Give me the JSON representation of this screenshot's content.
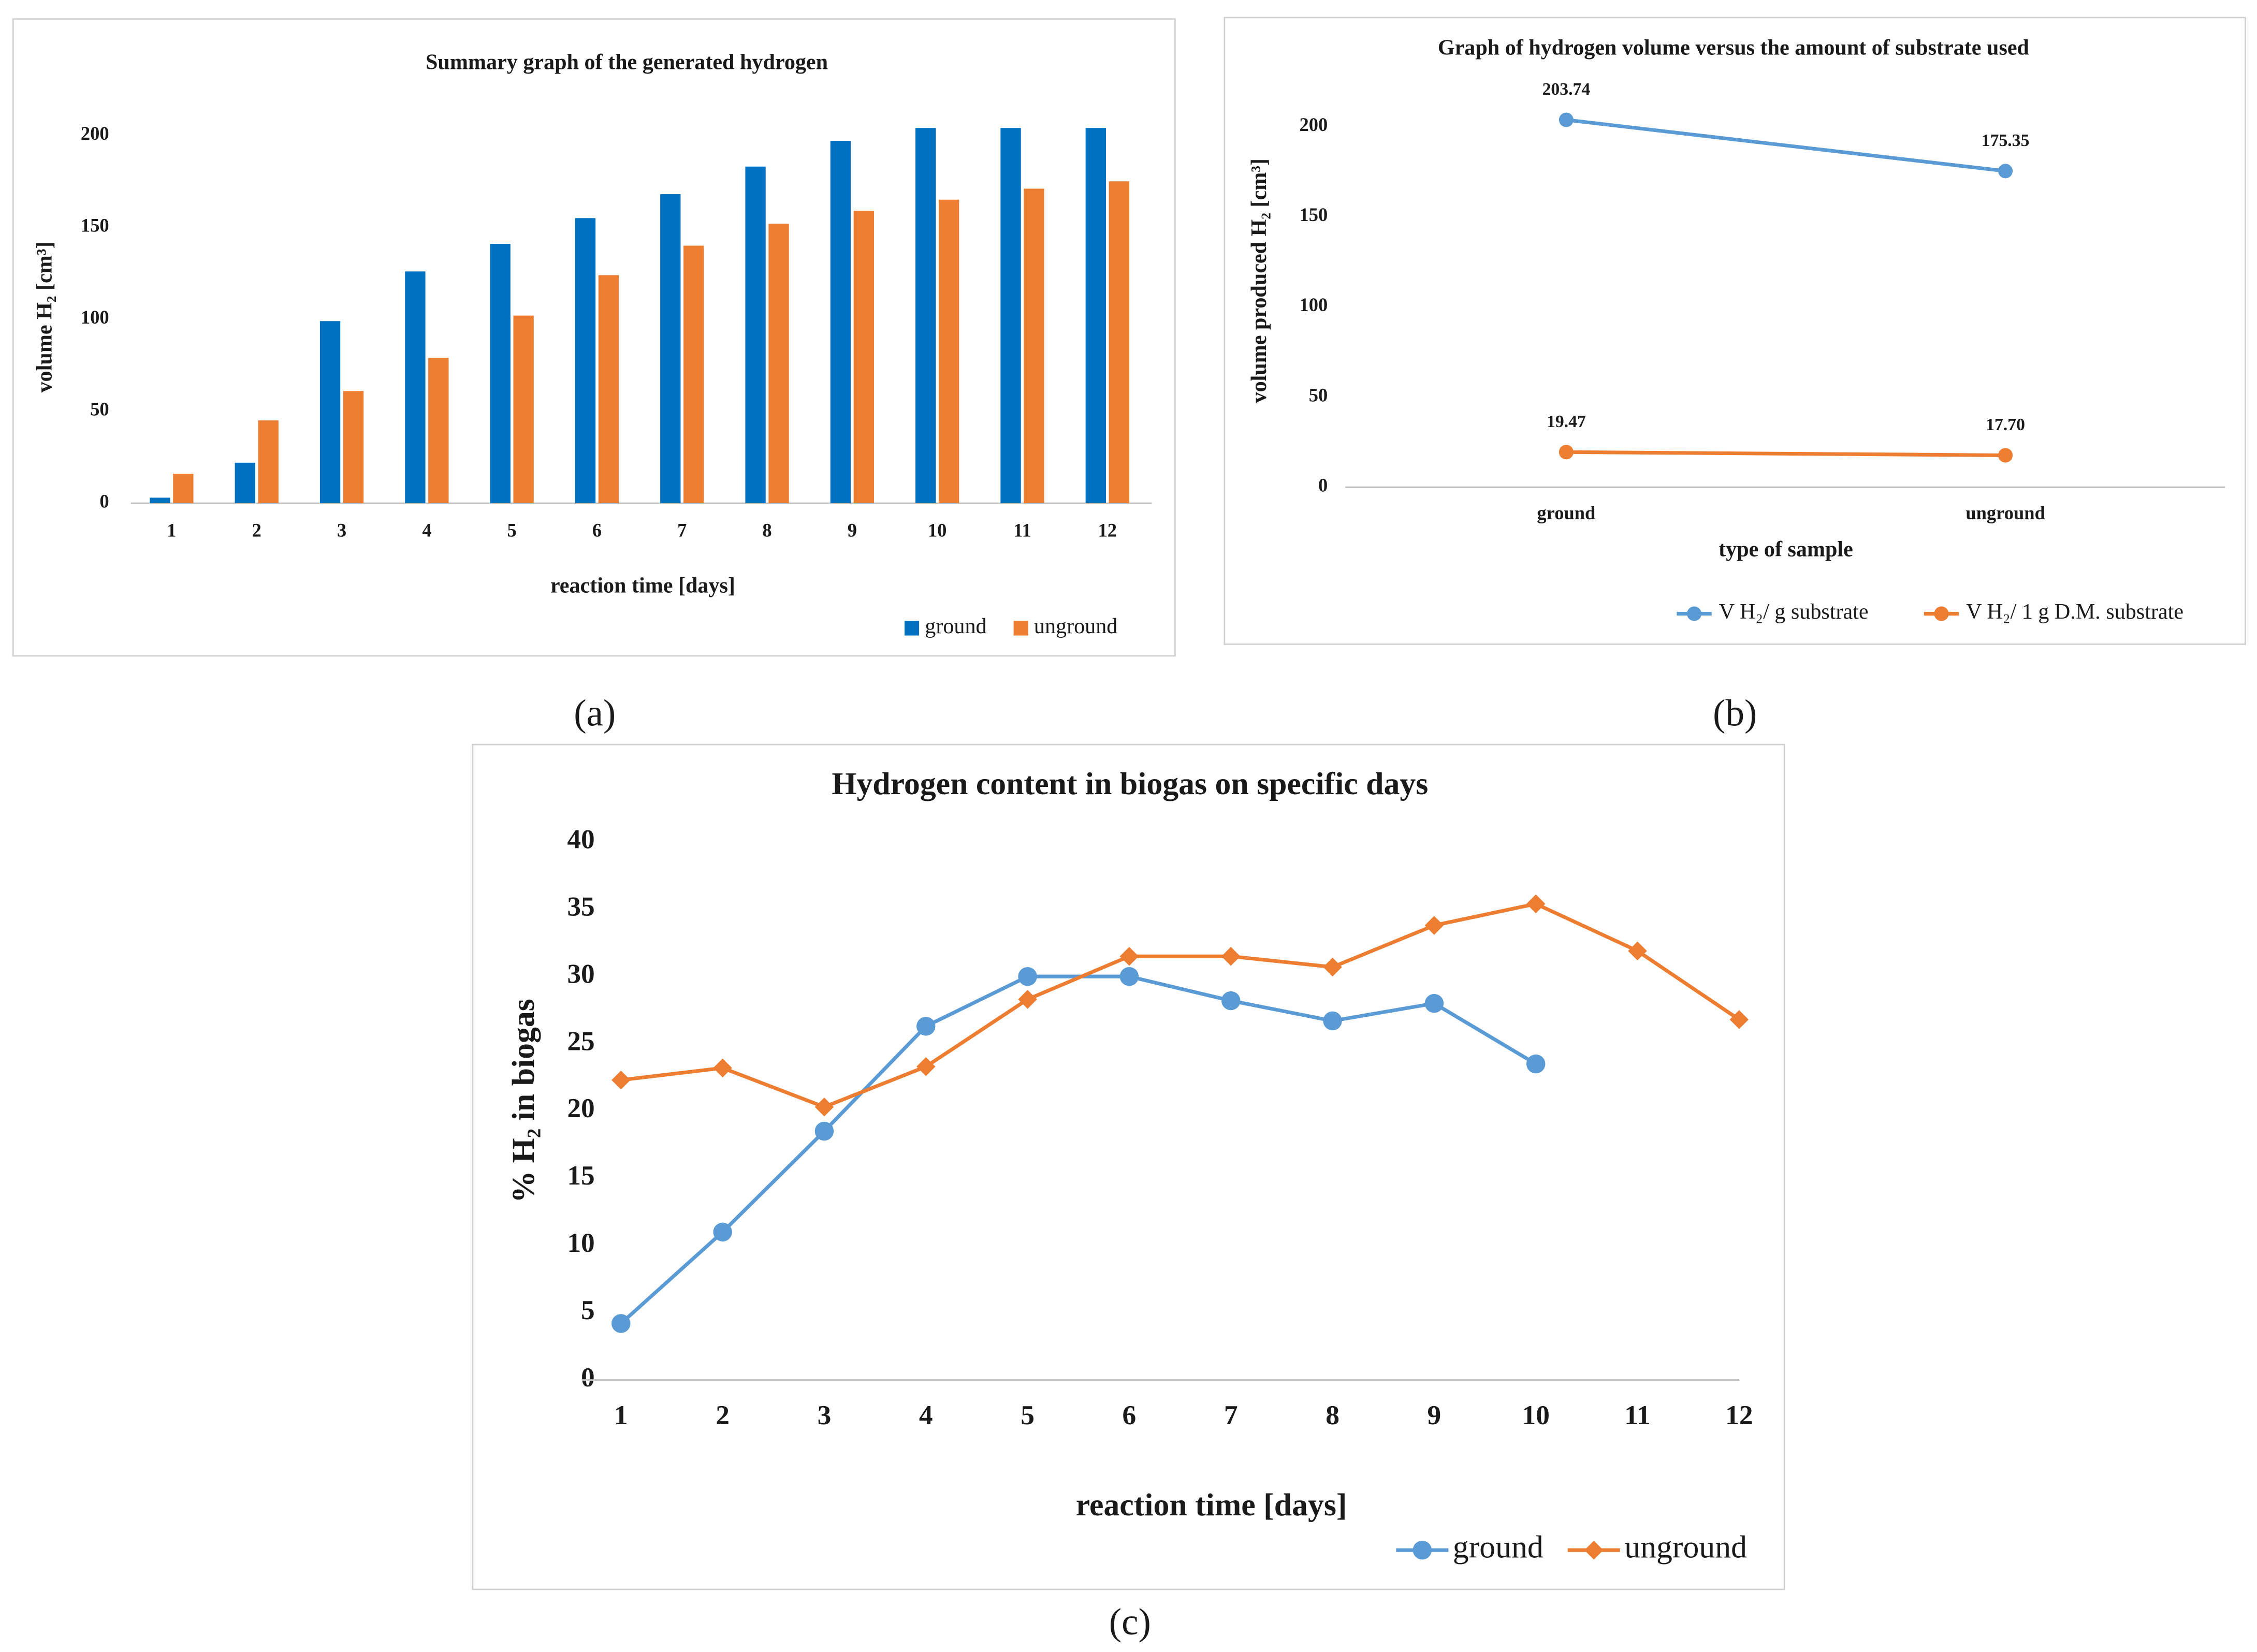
{
  "panel_labels": [
    "(a)",
    "(b)",
    "(c)"
  ],
  "chart_data": [
    {
      "type": "bar",
      "title": "Summary graph of the generated hydrogen",
      "x_label": "reaction time [days]",
      "y_label": "volume H₂ [cm³]",
      "categories": [
        "1",
        "2",
        "3",
        "4",
        "5",
        "6",
        "7",
        "8",
        "9",
        "10",
        "11",
        "12"
      ],
      "series": [
        {
          "name": "ground",
          "color": "#0070c0",
          "values": [
            3,
            22,
            99,
            126,
            141,
            155,
            168,
            183,
            197,
            204,
            204,
            204
          ]
        },
        {
          "name": "unground",
          "color": "#ed7d31",
          "values": [
            16,
            45,
            61,
            79,
            102,
            124,
            140,
            152,
            159,
            165,
            171,
            175
          ]
        }
      ],
      "ylim": [
        0,
        200
      ],
      "yticks": [
        0,
        50,
        100,
        150,
        200
      ],
      "grid": false,
      "legend": "bottom right"
    },
    {
      "type": "line",
      "title": "Graph of hydrogen volume versus the amount of substrate used",
      "x_label": "type of sample",
      "y_label": "volume produced H₂ [cm³]",
      "categories": [
        "ground",
        "unground"
      ],
      "series": [
        {
          "name": "V H₂/ g substrate",
          "color": "#5b9bd5",
          "marker": "circle",
          "values": [
            203.74,
            175.35
          ],
          "value_labels": [
            "203.74",
            "175.35"
          ]
        },
        {
          "name": "V H₂/ 1 g D.M. substrate",
          "color": "#ed7d31",
          "marker": "circle",
          "values": [
            19.47,
            17.7
          ],
          "value_labels": [
            "19.47",
            "17.70"
          ]
        }
      ],
      "ylim": [
        0,
        200
      ],
      "yticks": [
        0,
        50,
        100,
        150,
        200
      ],
      "grid": false,
      "legend": "bottom right"
    },
    {
      "type": "line",
      "title": "Hydrogen content in biogas on specific days",
      "x_label": "reaction time [days]",
      "y_label": "% H₂ in biogas",
      "categories": [
        "1",
        "2",
        "3",
        "4",
        "5",
        "6",
        "7",
        "8",
        "9",
        "10",
        "11",
        "12"
      ],
      "series": [
        {
          "name": "ground",
          "color": "#5b9bd5",
          "marker": "circle",
          "values": [
            4.2,
            11,
            18.5,
            26.3,
            30,
            30,
            28.2,
            26.7,
            28,
            23.5,
            null,
            null
          ]
        },
        {
          "name": "unground",
          "color": "#ed7d31",
          "marker": "diamond",
          "values": [
            22.3,
            23.2,
            20.3,
            23.3,
            28.3,
            31.5,
            31.5,
            30.7,
            33.8,
            35.4,
            31.9,
            26.8
          ]
        }
      ],
      "ylim": [
        0,
        40
      ],
      "yticks": [
        0,
        5,
        10,
        15,
        20,
        25,
        30,
        35,
        40
      ],
      "grid": false,
      "legend": "bottom right"
    }
  ]
}
